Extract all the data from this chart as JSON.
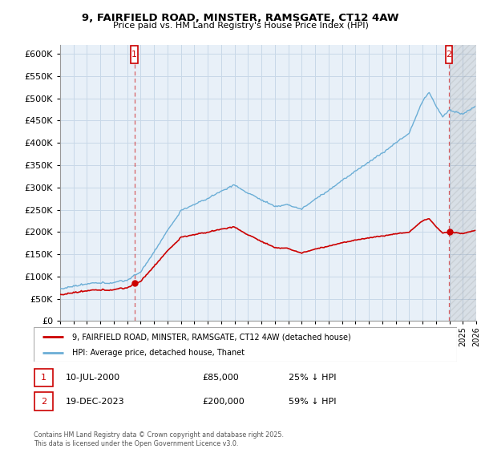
{
  "title": "9, FAIRFIELD ROAD, MINSTER, RAMSGATE, CT12 4AW",
  "subtitle": "Price paid vs. HM Land Registry's House Price Index (HPI)",
  "ylim": [
    0,
    620000
  ],
  "yticks": [
    0,
    50000,
    100000,
    150000,
    200000,
    250000,
    300000,
    350000,
    400000,
    450000,
    500000,
    550000,
    600000
  ],
  "x_start_year": 1995,
  "x_end_year": 2026,
  "hpi_color": "#6baed6",
  "price_color": "#cc0000",
  "dashed_line_color": "#cc0000",
  "grid_color": "#c8d8e8",
  "background_color": "#e8f0f8",
  "marker1_year": 2000.53,
  "marker2_year": 2023.96,
  "transaction1": {
    "date": "10-JUL-2000",
    "price": 85000,
    "hpi_diff": "25% ↓ HPI"
  },
  "transaction2": {
    "date": "19-DEC-2023",
    "price": 200000,
    "hpi_diff": "59% ↓ HPI"
  },
  "legend_line1": "9, FAIRFIELD ROAD, MINSTER, RAMSGATE, CT12 4AW (detached house)",
  "legend_line2": "HPI: Average price, detached house, Thanet",
  "footer": "Contains HM Land Registry data © Crown copyright and database right 2025.\nThis data is licensed under the Open Government Licence v3.0."
}
